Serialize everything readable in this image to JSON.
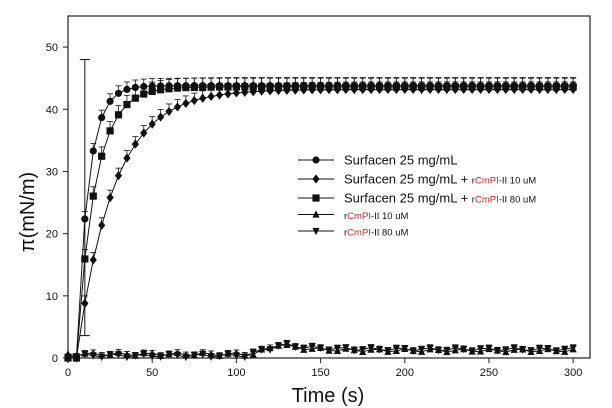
{
  "chart_data": {
    "type": "scatter",
    "title": "",
    "xlabel": "Time (s)",
    "ylabel": "π(mN/m)",
    "xlim": [
      0,
      310
    ],
    "ylim": [
      0,
      55
    ],
    "xticks": [
      0,
      50,
      100,
      150,
      200,
      250,
      300
    ],
    "yticks": [
      0,
      10,
      20,
      30,
      40,
      50
    ],
    "grid": false,
    "legend_position": "center-right",
    "series": [
      {
        "name": "Surfacen 25 mg/mL",
        "marker": "circle",
        "curve": {
          "type": "saturating",
          "t0": 5,
          "start": 0,
          "rise_time": 10,
          "plateau": 43.8,
          "tau": 7
        },
        "error": 1.2
      },
      {
        "name_parts": [
          {
            "text": "Surfacen 25 mg/mL + ",
            "style": "main"
          },
          {
            "text": "r",
            "style": "small"
          },
          {
            "text": "CmPI",
            "style": "small-red"
          },
          {
            "text": "-II 10 uM",
            "style": "small"
          }
        ],
        "marker": "diamond",
        "curve": {
          "type": "saturating",
          "t0": 5,
          "start": 0,
          "rise_time": 10,
          "plateau": 43.2,
          "tau": 22
        },
        "error": 1.2
      },
      {
        "name_parts": [
          {
            "text": "Surfacen 25 mg/mL + ",
            "style": "main"
          },
          {
            "text": "r",
            "style": "small"
          },
          {
            "text": "CmPI",
            "style": "small-red"
          },
          {
            "text": "-II 80 uM",
            "style": "small"
          }
        ],
        "marker": "square",
        "curve": {
          "type": "saturating",
          "t0": 5,
          "start": 0,
          "rise_time": 10,
          "plateau": 43.6,
          "tau": 11
        },
        "error": 1.5,
        "special_errors": [
          {
            "x": 10,
            "y": 36,
            "err": 12
          }
        ]
      },
      {
        "name_parts": [
          {
            "text": "r",
            "style": "small"
          },
          {
            "text": "CmPI",
            "style": "small-red"
          },
          {
            "text": "-II 10 uM",
            "style": "small"
          }
        ],
        "marker": "triangle-up",
        "curve": {
          "type": "flat-bump",
          "base": 0.6,
          "bump_start": 110,
          "bump_peak": 125,
          "bump_height": 1.6,
          "tail": 1.2
        },
        "error": 0.5
      },
      {
        "name_parts": [
          {
            "text": "r",
            "style": "small"
          },
          {
            "text": "CmPI",
            "style": "small-red"
          },
          {
            "text": "-II 80 uM",
            "style": "small"
          }
        ],
        "marker": "triangle-down",
        "curve": {
          "type": "flat-bump",
          "base": 0.4,
          "bump_start": 105,
          "bump_peak": 128,
          "bump_height": 1.8,
          "tail": 1.4
        },
        "error": 0.5
      }
    ],
    "point_spacing": 5,
    "x_start": 0,
    "x_end": 300
  }
}
